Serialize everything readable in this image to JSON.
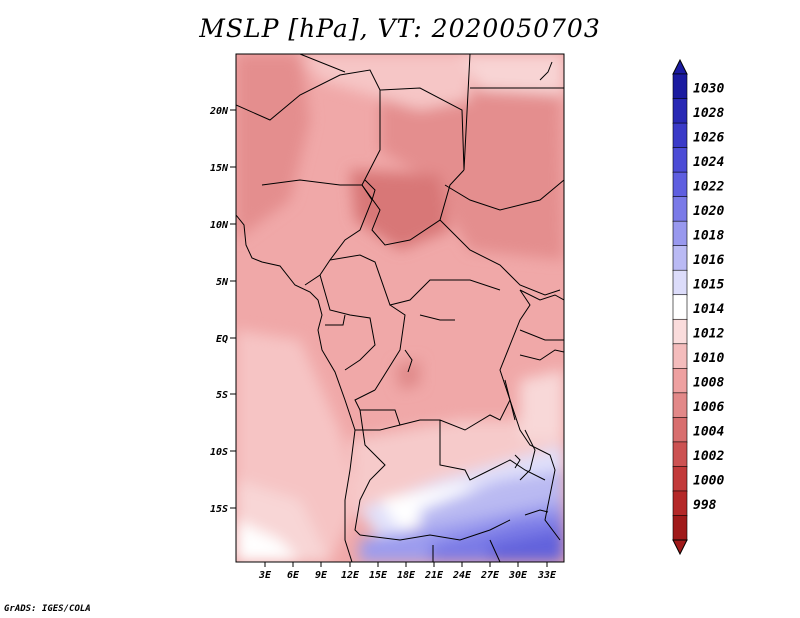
{
  "title": "MSLP [hPa], VT: 2020050703",
  "footer": "GrADS: IGES/COLA",
  "map": {
    "variable": "MSLP",
    "units": "hPa",
    "valid_time": "2020050703",
    "region": "Central Africa"
  },
  "axes": {
    "lat_labels": [
      "20N",
      "15N",
      "10N",
      "5N",
      "EQ",
      "5S",
      "10S",
      "15S"
    ],
    "lon_labels": [
      "3E",
      "6E",
      "9E",
      "12E",
      "15E",
      "18E",
      "21E",
      "24E",
      "27E",
      "30E",
      "33E"
    ]
  },
  "colorbar": {
    "labels": [
      "1030",
      "1028",
      "1026",
      "1024",
      "1022",
      "1020",
      "1018",
      "1016",
      "1015",
      "1014",
      "1012",
      "1010",
      "1008",
      "1006",
      "1004",
      "1002",
      "1000",
      "998"
    ],
    "colors": [
      "#1b1ba0",
      "#2828b4",
      "#3a3ac8",
      "#4c4cd6",
      "#5f5fe0",
      "#7a7ae8",
      "#9898ee",
      "#babaf4",
      "#dcdcfa",
      "#ffffff",
      "#fadcdc",
      "#f4bcbc",
      "#eea0a0",
      "#e28888",
      "#d86e6e",
      "#cc5252",
      "#c23a3a",
      "#b42828",
      "#a01a1a"
    ]
  }
}
